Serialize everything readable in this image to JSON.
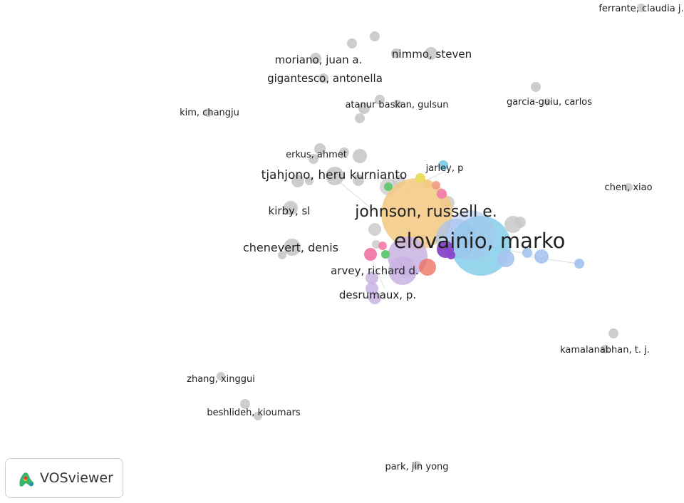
{
  "app": {
    "logo_text": "VOSviewer",
    "logo_icon": "vosviewer-logo-icon"
  },
  "network": {
    "colors": {
      "gray": "#c8c8c8",
      "orange": "#f2c883",
      "blue": "#7ccbe7",
      "lightblue": "#a7c3ef",
      "lavender": "#c9b3e2",
      "purple": "#8a46c8",
      "pink": "#f07aa8",
      "green": "#5cc86a",
      "salmon": "#f29a86",
      "yellow": "#e9dc5a",
      "red": "#ee6a5a"
    },
    "labels": [
      "ferrante, claudia j.",
      "moriano, juan a.",
      "nimmo, steven",
      "gigantesco, antonella",
      "atanur baskan, gulsun",
      "garcia-guiu, carlos",
      "kim, changju",
      "erkus, ahmet",
      "jarley, p",
      "tjahjono, heru kurnianto",
      "chen, xiao",
      "johnson, russell e.",
      "kirby, sl",
      "elovainio, marko",
      "chenevert, denis",
      "arvey, richard d.",
      "desrumaux, p.",
      "kamalanabhan, t. j.",
      "zhang, xinggui",
      "beshlideh, kioumars",
      "park, jin yong"
    ]
  }
}
